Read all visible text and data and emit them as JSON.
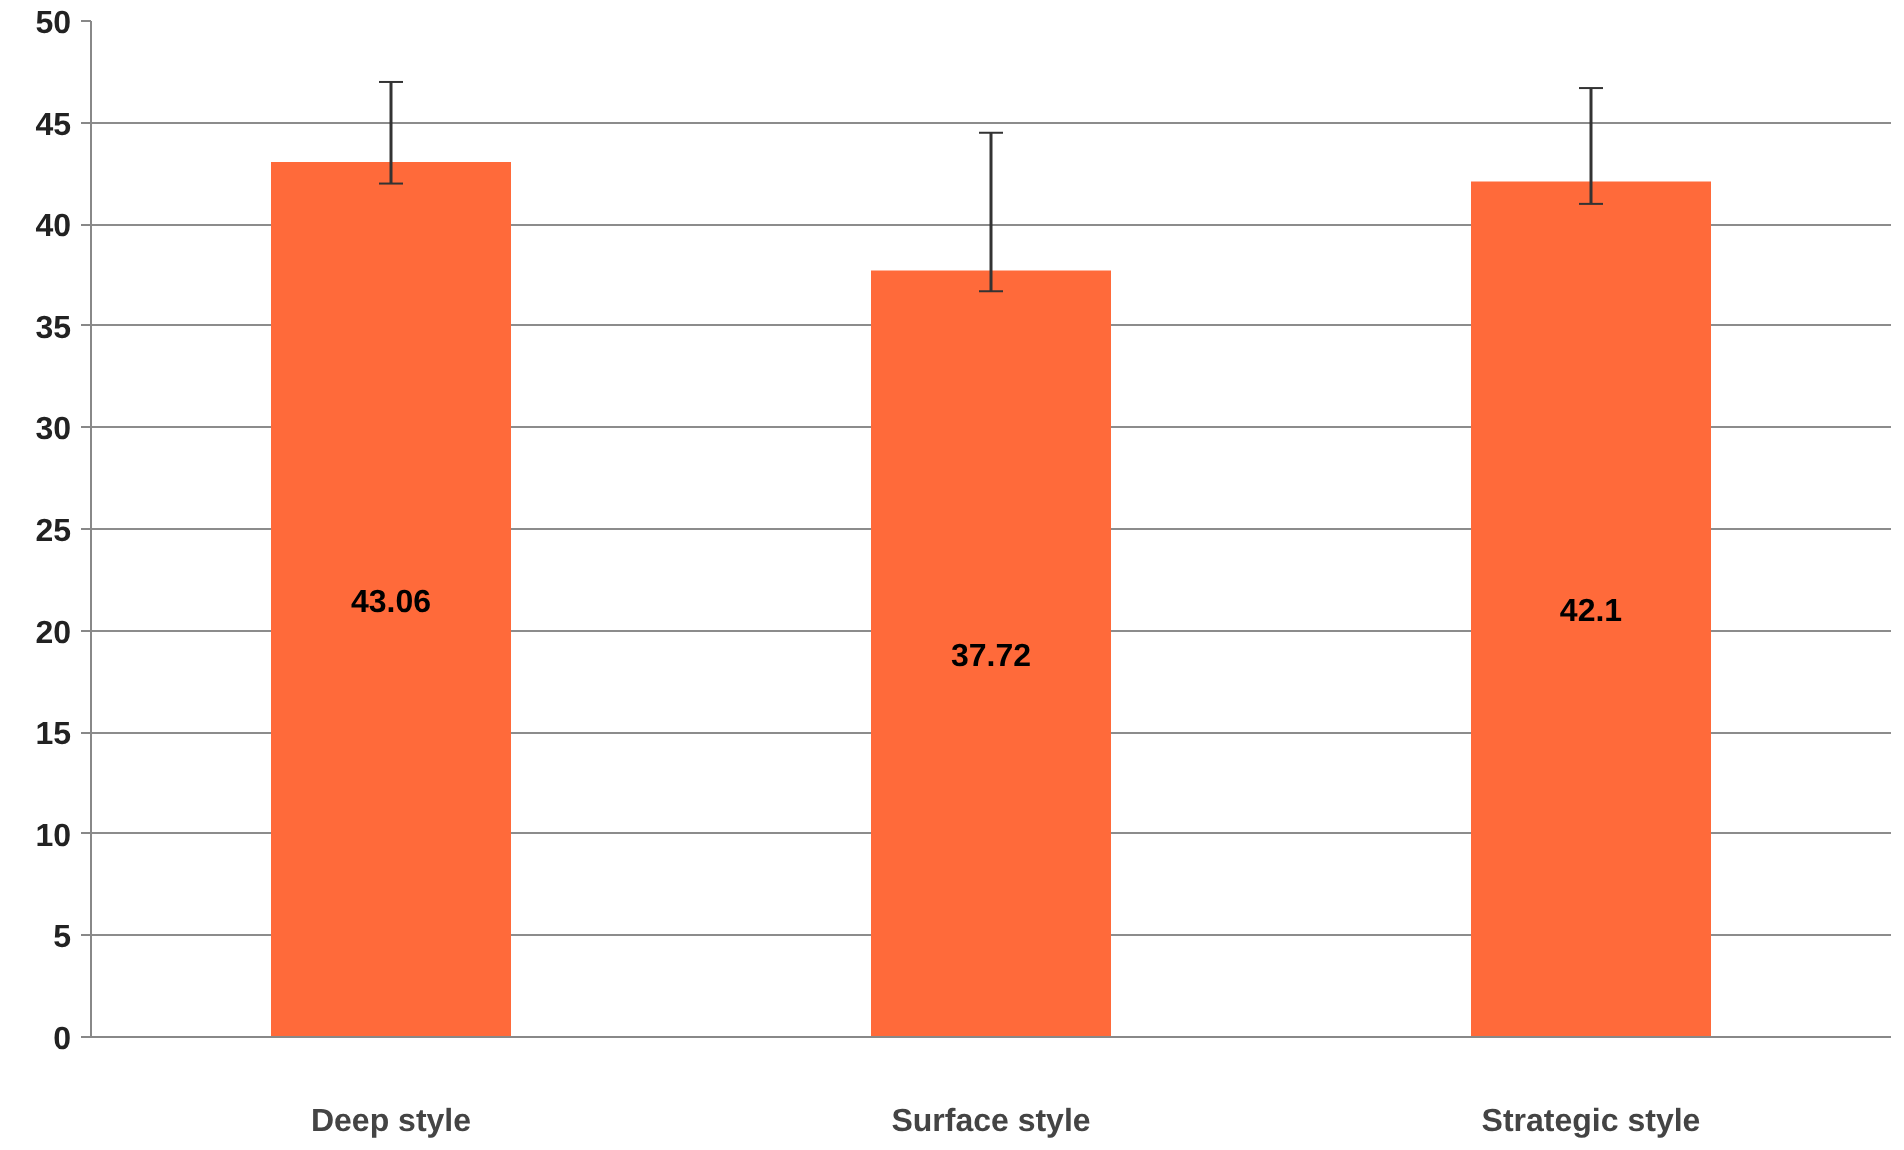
{
  "chart_data": {
    "type": "bar",
    "categories": [
      "Deep style",
      "Surface style",
      "Strategic style"
    ],
    "values": [
      43.06,
      37.72,
      42.1
    ],
    "errors": [
      [
        42,
        47
      ],
      [
        36.7,
        44.5
      ],
      [
        41,
        46.7
      ]
    ],
    "color": "#ff6a3a",
    "data_labels": true,
    "ylim": [
      0,
      50
    ],
    "yticks": [
      0,
      5,
      10,
      15,
      20,
      25,
      30,
      35,
      40,
      45,
      50
    ],
    "grid": "y"
  }
}
